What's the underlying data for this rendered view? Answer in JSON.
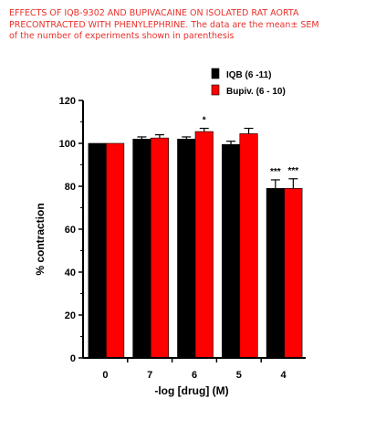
{
  "caption": {
    "line1": "EFFECTS OF IQB-9302 AND BUPIVACAINE ON ISOLATED RAT AORTA",
    "line2": "PRECONTRACTED WITH PHENYLEPHRINE. The data are the mean± SEM",
    "line3": "of the number of experiments shown in parenthesis"
  },
  "colors": {
    "caption": "#e8302a",
    "series1": "#000000",
    "series2": "#ff0000"
  },
  "chart_data": {
    "type": "bar",
    "xlabel": "-log [drug] (M)",
    "ylabel": "% contraction",
    "ylim": [
      0,
      120
    ],
    "yticks": [
      0,
      20,
      40,
      60,
      80,
      100,
      120
    ],
    "categories": [
      "0",
      "7",
      "6",
      "5",
      "4"
    ],
    "legend_position": "top-right",
    "grid": false,
    "series": [
      {
        "name": "IQB (6 -11)",
        "color": "#000000",
        "values": [
          100,
          102,
          102,
          99.5,
          79
        ],
        "errors": [
          0,
          1,
          1,
          1.5,
          4
        ],
        "annotations": [
          "",
          "",
          "",
          "",
          "***"
        ]
      },
      {
        "name": "Bupiv. (6 - 10)",
        "color": "#ff0000",
        "values": [
          100,
          102.5,
          105.5,
          104.5,
          79
        ],
        "errors": [
          0,
          1.5,
          1.5,
          2.5,
          4.5
        ],
        "annotations": [
          "",
          "",
          "*",
          "",
          "***"
        ]
      }
    ]
  }
}
